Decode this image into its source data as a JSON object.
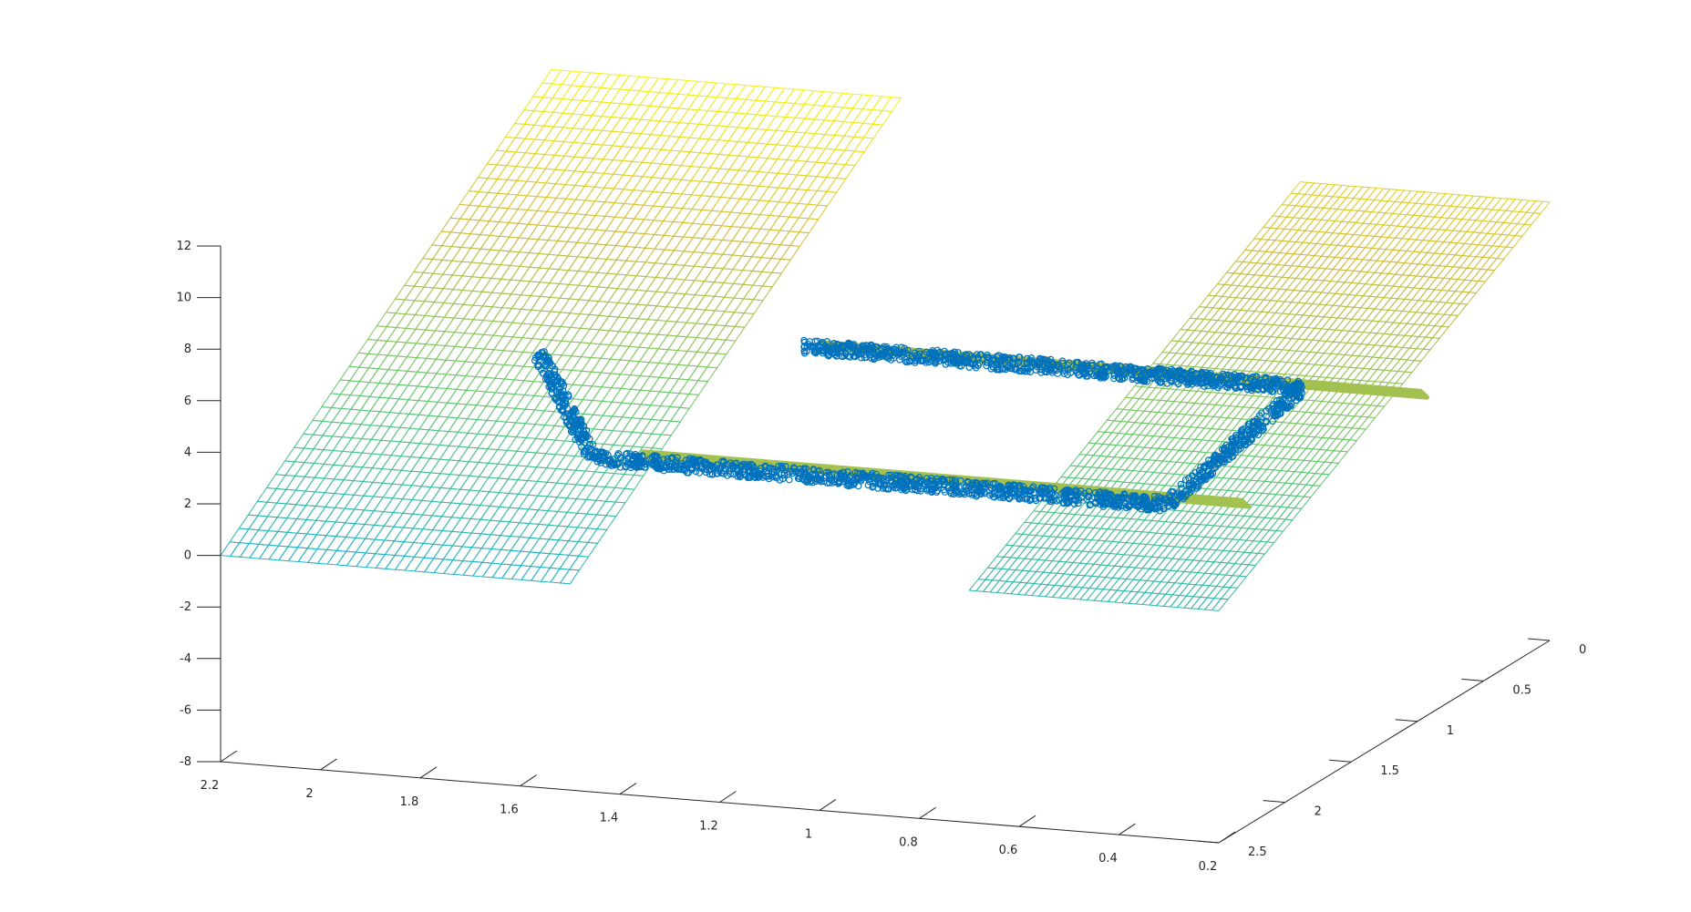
{
  "chart_data": {
    "type": "surface3d",
    "title": "",
    "xlabel": "",
    "ylabel": "",
    "zlabel": "",
    "grid": false,
    "legend": "none",
    "xlim": [
      0.2,
      2.2
    ],
    "ylim": [
      0,
      2.5
    ],
    "zlim": [
      -8,
      12
    ],
    "x_ticks": [
      "2.2",
      "2",
      "1.8",
      "1.6",
      "1.4",
      "1.2",
      "1",
      "0.8",
      "0.6",
      "0.4",
      "0.2"
    ],
    "y_ticks": [
      "0",
      "0.5",
      "1",
      "1.5",
      "2",
      "2.5"
    ],
    "z_ticks": [
      "12",
      "10",
      "8",
      "6",
      "4",
      "2",
      "0",
      "-2",
      "-4",
      "-6",
      "-8"
    ],
    "colormap": [
      "#3e26a8",
      "#2c7ef0",
      "#1fb2c8",
      "#63c86e",
      "#d2bc3a",
      "#f9fb15"
    ],
    "scatter_color": "#0072bd",
    "planes": [
      {
        "name": "",
        "x": [
          1.5,
          2.2
        ],
        "y": [
          0,
          2.5
        ],
        "z_range": [
          0,
          11
        ]
      },
      {
        "name": "",
        "x": [
          0.2,
          0.7
        ],
        "y": [
          0,
          2.5
        ],
        "z_range": [
          1,
          9
        ]
      }
    ],
    "sheets": [
      {
        "name": "",
        "x": [
          0.3,
          1.5
        ],
        "y": [
          0.55,
          0.6
        ],
        "z": 3
      },
      {
        "name": "",
        "x": [
          0.3,
          1.5
        ],
        "y": [
          1.9,
          1.95
        ],
        "z": 3
      }
    ],
    "point_bands": [
      {
        "name": "",
        "from": [
          2.0,
          0.85,
          3
        ],
        "to": [
          1.6,
          1.95,
          3
        ]
      },
      {
        "name": "",
        "from": [
          1.6,
          1.95,
          3
        ],
        "to": [
          0.45,
          1.95,
          3
        ]
      },
      {
        "name": "",
        "from": [
          0.45,
          1.95,
          3
        ],
        "to": [
          0.55,
          0.55,
          3
        ]
      },
      {
        "name": "",
        "from": [
          0.55,
          0.55,
          3
        ],
        "to": [
          1.55,
          0.55,
          3
        ]
      }
    ]
  }
}
